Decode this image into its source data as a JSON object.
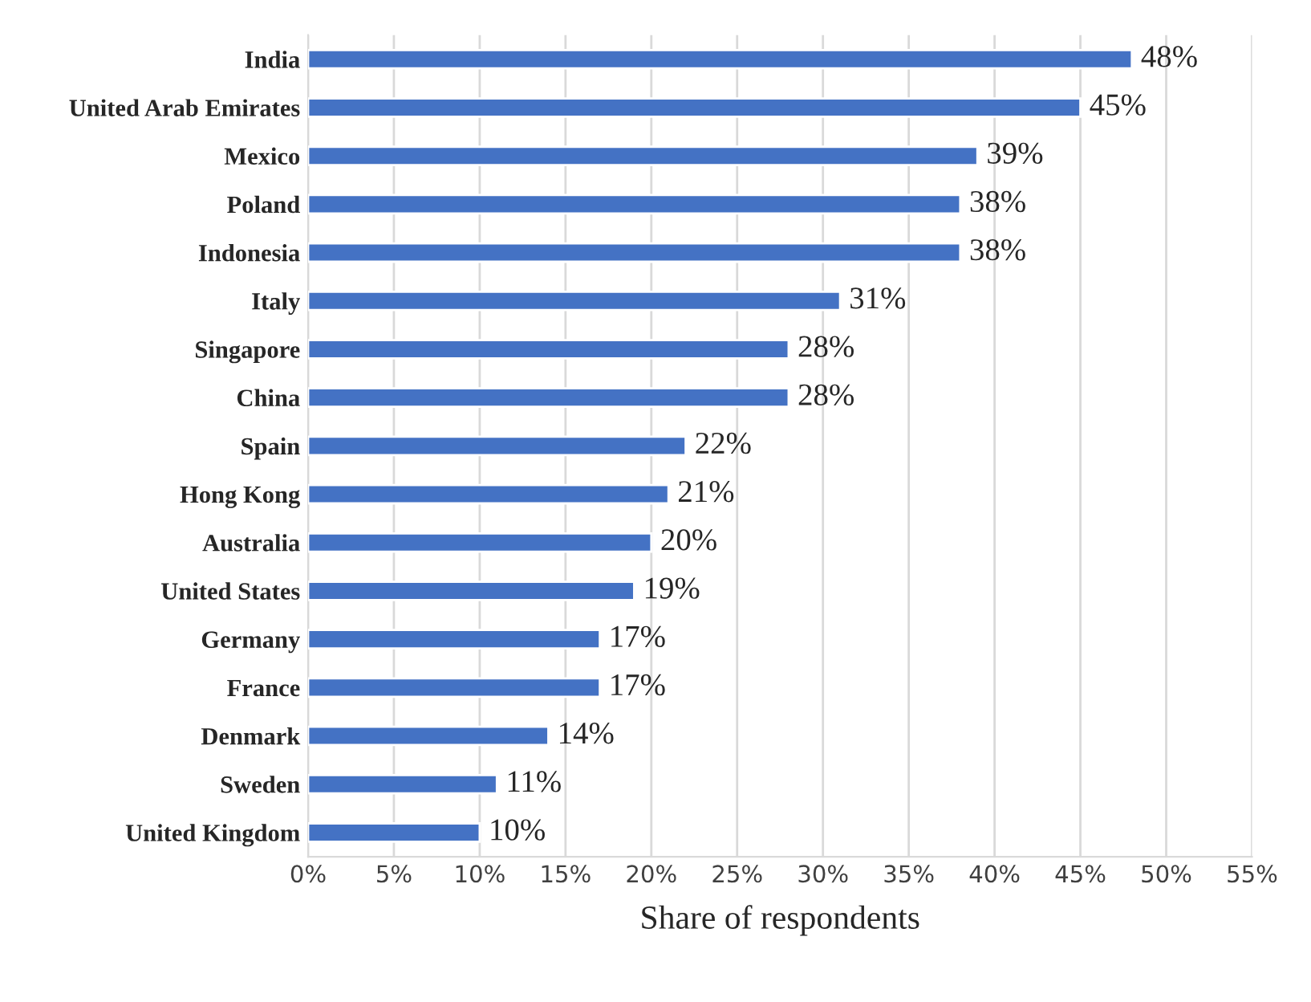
{
  "chart_data": {
    "type": "bar",
    "orientation": "horizontal",
    "xlabel": "Share of respondents",
    "categories": [
      "India",
      "United Arab Emirates",
      "Mexico",
      "Poland",
      "Indonesia",
      "Italy",
      "Singapore",
      "China",
      "Spain",
      "Hong Kong",
      "Australia",
      "United States",
      "Germany",
      "France",
      "Denmark",
      "Sweden",
      "United Kingdom"
    ],
    "values": [
      48,
      45,
      39,
      38,
      38,
      31,
      28,
      28,
      22,
      21,
      20,
      19,
      17,
      17,
      14,
      11,
      10
    ],
    "value_labels": [
      "48%",
      "45%",
      "39%",
      "38%",
      "38%",
      "31%",
      "28%",
      "28%",
      "22%",
      "21%",
      "20%",
      "19%",
      "17%",
      "17%",
      "14%",
      "11%",
      "10%"
    ],
    "color": "#4472c4",
    "xlim": [
      0,
      55
    ],
    "xticks": [
      {
        "value": 0,
        "label": "0%"
      },
      {
        "value": 5,
        "label": "5%"
      },
      {
        "value": 10,
        "label": "10%"
      },
      {
        "value": 15,
        "label": "15%"
      },
      {
        "value": 20,
        "label": "20%"
      },
      {
        "value": 25,
        "label": "25%"
      },
      {
        "value": 30,
        "label": "30%"
      },
      {
        "value": 35,
        "label": "35%"
      },
      {
        "value": 40,
        "label": "40%"
      },
      {
        "value": 45,
        "label": "45%"
      },
      {
        "value": 50,
        "label": "50%"
      },
      {
        "value": 55,
        "label": "55%"
      }
    ],
    "grid": "x",
    "legend": false
  }
}
